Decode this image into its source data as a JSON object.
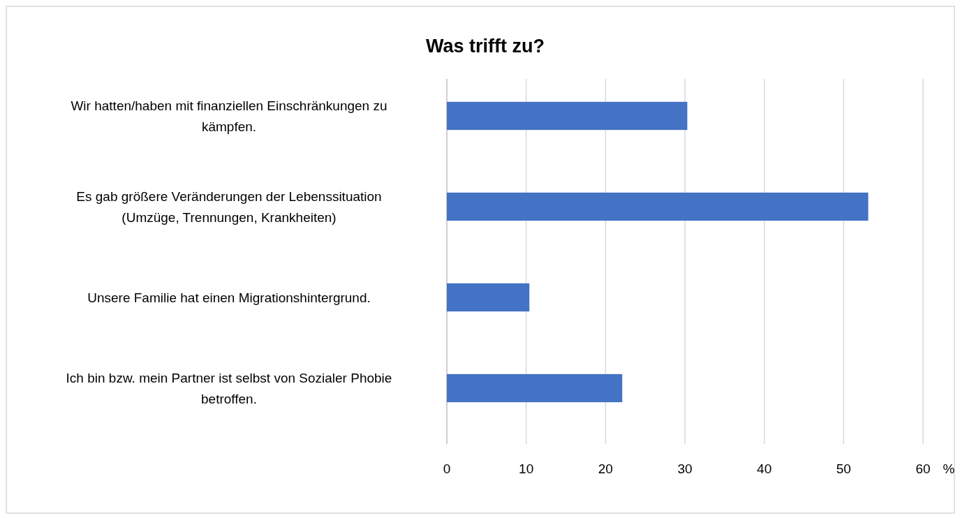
{
  "chart_data": {
    "type": "bar",
    "orientation": "horizontal",
    "title": "Was trifft zu?",
    "xlabel": "%",
    "categories": [
      "Wir hatten/haben mit finanziellen Einschränkungen zu kämpfen.",
      "Es gab größere Veränderungen der Lebenssituation (Umzüge, Trennungen, Krankheiten)",
      "Unsere Familie hat einen Migrationshintergrund.",
      "Ich bin bzw. mein Partner ist selbst von Sozialer Phobie betroffen."
    ],
    "values": [
      30.3,
      53.1,
      10.4,
      22.1
    ],
    "color": "#4472c4",
    "xlim": [
      0,
      60
    ],
    "xticks": [
      0,
      10,
      20,
      30,
      40,
      50,
      60
    ],
    "grid": "x"
  }
}
